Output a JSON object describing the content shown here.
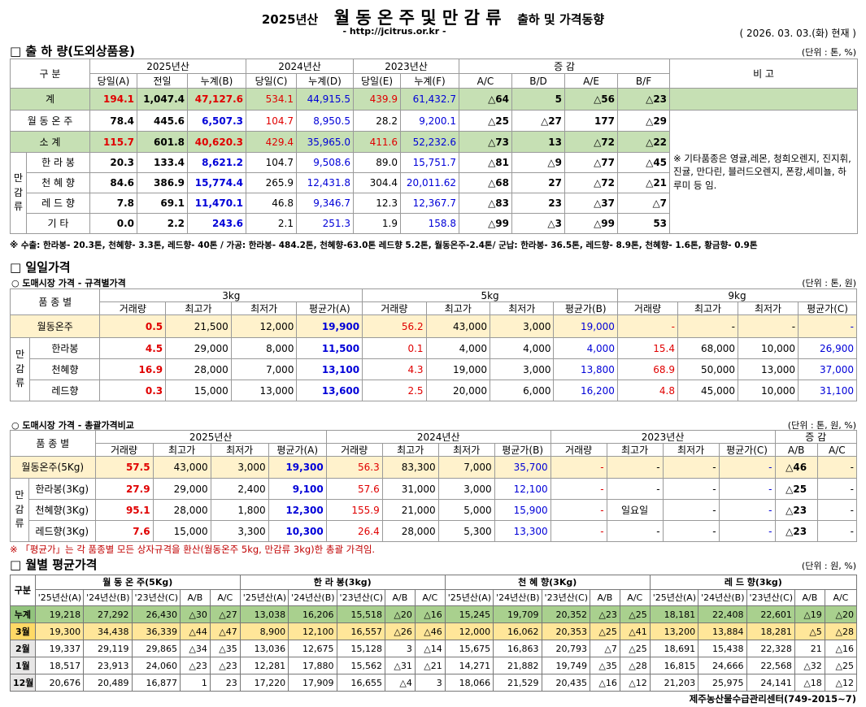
{
  "header": {
    "year": "2025년산",
    "title": "월 동 온 주 및 만 감 류",
    "suffix": "출하 및 가격동향",
    "url": "- http://jcitrus.or.kr -",
    "date": "( 2026. 03. 03.(화) 현재 )"
  },
  "shipment": {
    "title": "□ 출 하 량(도외상품용)",
    "unit": "(단위 : 톤, %)",
    "col_div": "구 분",
    "col_note": "비 고",
    "growth": "증 감",
    "y2025": "2025년산",
    "y2024": "2024년산",
    "y2023": "2023년산",
    "sub": [
      "당일(A)",
      "전일",
      "누계(B)",
      "당일(C)",
      "누계(D)",
      "당일(E)",
      "누계(F)",
      "A/C",
      "B/D",
      "A/E",
      "B/F"
    ],
    "mandarin_label": "만 감 류",
    "rows": [
      {
        "name": "계",
        "cells": [
          "194.1",
          "1,047.4",
          "47,127.6",
          "534.1",
          "44,915.5",
          "439.9",
          "61,432.7",
          "△64",
          "5",
          "△56",
          "△23"
        ]
      },
      {
        "name": "월 동 온 주",
        "cells": [
          "78.4",
          "445.6",
          "6,507.3",
          "104.7",
          "8,950.5",
          "28.2",
          "9,200.1",
          "△25",
          "△27",
          "177",
          "△29"
        ]
      },
      {
        "name": "소  계",
        "cells": [
          "115.7",
          "601.8",
          "40,620.3",
          "429.4",
          "35,965.0",
          "411.6",
          "52,232.6",
          "△73",
          "13",
          "△72",
          "△22"
        ]
      },
      {
        "name": "한 라 봉",
        "cells": [
          "20.3",
          "133.4",
          "8,621.2",
          "104.7",
          "9,508.6",
          "89.0",
          "15,751.7",
          "△81",
          "△9",
          "△77",
          "△45"
        ]
      },
      {
        "name": "천 혜 향",
        "cells": [
          "84.6",
          "386.9",
          "15,774.4",
          "265.9",
          "12,431.8",
          "304.4",
          "20,011.62",
          "△68",
          "27",
          "△72",
          "△21"
        ]
      },
      {
        "name": "레 드 향",
        "cells": [
          "7.8",
          "69.1",
          "11,470.1",
          "46.8",
          "9,346.7",
          "12.3",
          "12,367.7",
          "△83",
          "23",
          "△37",
          "△7"
        ]
      },
      {
        "name": "기   타",
        "cells": [
          "0.0",
          "2.2",
          "243.6",
          "2.1",
          "251.3",
          "1.9",
          "158.8",
          "△99",
          "△3",
          "△99",
          "53"
        ]
      }
    ],
    "remark": "※ 기타품종은 영귤,레몬, 청희오렌지, 진지휘, 진귤, 만다린, 블러드오렌지, 폰캉,세미뇰, 하루미 등 임.",
    "footnote": "※ 수출: 한라봉- 20.3톤, 천혜향- 3.3톤, 레드향- 40톤 / 가공: 한라봉- 484.2톤, 천혜향-63.0톤 레드향 5.2톤, 월동온주-2.4톤/  군납: 한라봉- 36.5톤, 레드향- 8.9톤, 천혜향- 1.6톤, 황금향- 0.9톤"
  },
  "daily": {
    "title": "□ 일일가격",
    "sub1": "○ 도매시장 가격 - 규격별가격",
    "unit1": "(단위 : 톤, 원)",
    "kind": "품 종 별",
    "mandarin_label": "만 감 류",
    "sizes": [
      "3kg",
      "5kg",
      "9kg"
    ],
    "cols": [
      "거래량",
      "최고가",
      "최저가",
      "평균가(A)",
      "거래량",
      "최고가",
      "최저가",
      "평균가(B)",
      "거래량",
      "최고가",
      "최저가",
      "평균가(C)"
    ],
    "rows": [
      {
        "name": "월동온주",
        "cells": [
          "0.5",
          "21,500",
          "12,000",
          "19,900",
          "56.2",
          "43,000",
          "3,000",
          "19,000",
          "-",
          "-",
          "-",
          "-"
        ]
      },
      {
        "name": "한라봉",
        "cells": [
          "4.5",
          "29,000",
          "8,000",
          "11,500",
          "0.1",
          "4,000",
          "4,000",
          "4,000",
          "15.4",
          "68,000",
          "10,000",
          "26,900"
        ]
      },
      {
        "name": "천혜향",
        "cells": [
          "16.9",
          "28,000",
          "7,000",
          "13,100",
          "4.3",
          "19,000",
          "3,000",
          "13,800",
          "68.9",
          "50,000",
          "13,000",
          "37,000"
        ]
      },
      {
        "name": "레드향",
        "cells": [
          "0.3",
          "15,000",
          "13,000",
          "13,600",
          "2.5",
          "20,000",
          "6,000",
          "16,200",
          "4.8",
          "45,000",
          "10,000",
          "31,100"
        ]
      }
    ],
    "sub2": "○ 도매시장 가격 - 총괄가격비교",
    "unit2": "(단위 : 톤, 원, %)",
    "years": [
      "2025년산",
      "2024년산",
      "2023년산"
    ],
    "growth": "증 감",
    "cols2": [
      "거래량",
      "최고가",
      "최저가",
      "평균가(A)",
      "거래량",
      "최고가",
      "최저가",
      "평균가(B)",
      "거래량",
      "최고가",
      "최저가",
      "평균가(C)",
      "A/B",
      "A/C"
    ],
    "rows2": [
      {
        "name": "월동온주(5Kg)",
        "cells": [
          "57.5",
          "43,000",
          "3,000",
          "19,300",
          "56.3",
          "83,300",
          "7,000",
          "35,700",
          "-",
          "-",
          "-",
          "-",
          "△46",
          "-"
        ]
      },
      {
        "name": "한라봉(3Kg)",
        "cells": [
          "27.9",
          "29,000",
          "2,400",
          "9,100",
          "57.6",
          "31,000",
          "3,000",
          "12,100",
          "-",
          "-",
          "-",
          "-",
          "△25",
          "-"
        ]
      },
      {
        "name": "천혜향(3Kg)",
        "cells": [
          "95.1",
          "28,000",
          "1,800",
          "12,300",
          "155.9",
          "21,000",
          "5,000",
          "15,900",
          "-",
          "일요일",
          "-",
          "-",
          "△23",
          "-"
        ]
      },
      {
        "name": "레드향(3Kg)",
        "cells": [
          "7.6",
          "15,000",
          "3,300",
          "10,300",
          "26.4",
          "28,000",
          "5,300",
          "13,300",
          "-",
          "-",
          "-",
          "-",
          "△23",
          "-"
        ]
      }
    ],
    "note": "※ 「평균가」는 각 품종별 모든 상자규격을 환산(월동온주 5kg, 만감류 3kg)한 총괄 가격임."
  },
  "monthly": {
    "title": "□ 월별 평균가격",
    "unit": "(단위 : 원, %)",
    "col_div": "구분",
    "groups": [
      "월 동 온 주(5Kg)",
      "한 라 봉(3kg)",
      "천 혜 향(3Kg)",
      "레 드 향(3kg)"
    ],
    "sub": [
      "'25년산(A)",
      "'24년산(B)",
      "'23년산(C)",
      "A/B",
      "A/C"
    ],
    "rows": [
      {
        "name": "누계",
        "cells": [
          "19,218",
          "27,292",
          "26,430",
          "△30",
          "△27",
          "13,038",
          "16,206",
          "15,518",
          "△20",
          "△16",
          "15,245",
          "19,709",
          "20,352",
          "△23",
          "△25",
          "18,181",
          "22,408",
          "22,601",
          "△19",
          "△20"
        ]
      },
      {
        "name": "3월",
        "cells": [
          "19,300",
          "34,438",
          "36,339",
          "△44",
          "△47",
          "8,900",
          "12,100",
          "16,557",
          "△26",
          "△46",
          "12,000",
          "16,062",
          "20,353",
          "△25",
          "△41",
          "13,200",
          "13,884",
          "18,281",
          "△5",
          "△28"
        ]
      },
      {
        "name": "2월",
        "cells": [
          "19,337",
          "29,119",
          "29,865",
          "△34",
          "△35",
          "13,036",
          "12,675",
          "15,128",
          "3",
          "△14",
          "15,675",
          "16,863",
          "20,793",
          "△7",
          "△25",
          "18,691",
          "15,438",
          "22,328",
          "21",
          "△16"
        ]
      },
      {
        "name": "1월",
        "cells": [
          "18,517",
          "23,913",
          "24,060",
          "△23",
          "△23",
          "12,281",
          "17,880",
          "15,562",
          "△31",
          "△21",
          "14,271",
          "21,882",
          "19,749",
          "△35",
          "△28",
          "16,815",
          "24,666",
          "22,568",
          "△32",
          "△25"
        ]
      },
      {
        "name": "12월",
        "cells": [
          "20,676",
          "20,489",
          "16,877",
          "1",
          "23",
          "17,220",
          "17,909",
          "16,655",
          "△4",
          "3",
          "18,066",
          "21,529",
          "20,435",
          "△16",
          "△12",
          "21,203",
          "25,975",
          "24,141",
          "△18",
          "△12"
        ]
      }
    ],
    "footer": "제주농산물수급관리센터(749-2015~7)"
  }
}
